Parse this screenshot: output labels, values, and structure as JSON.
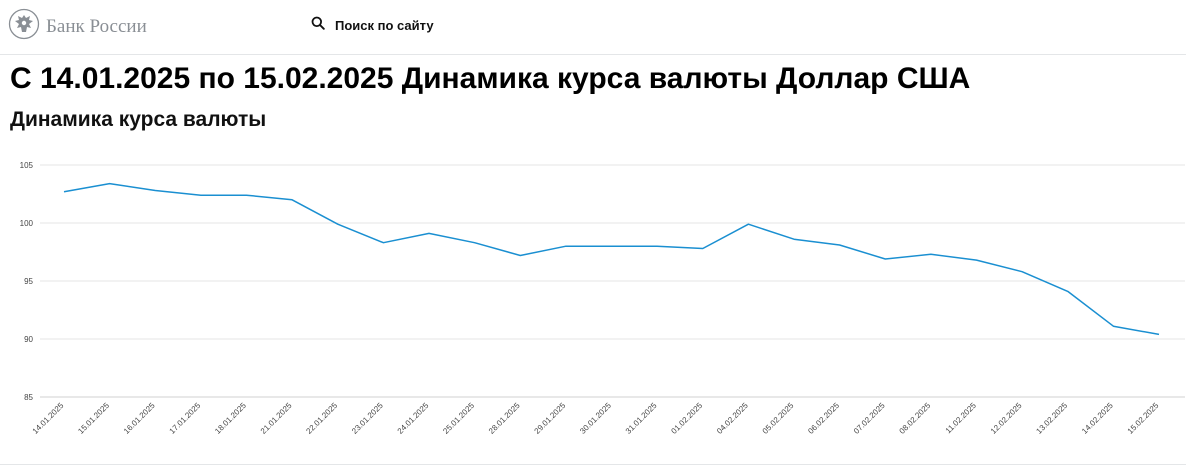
{
  "header": {
    "logo_text": "Банк России",
    "logo_icon": "eagle-emblem-icon",
    "search_icon": "search-icon",
    "search_label": "Поиск по сайту"
  },
  "page_title": "С 14.01.2025 по 15.02.2025 Динамика курса валюты Доллар США",
  "section_title": "Динамика курса валюты",
  "colors": {
    "line": "#1a8fd1",
    "grid": "#e6e6e6",
    "logo": "#8a8f95"
  },
  "chart_data": {
    "type": "line",
    "title": "",
    "xlabel": "",
    "ylabel": "",
    "categories": [
      "14.01.2025",
      "15.01.2025",
      "16.01.2025",
      "17.01.2025",
      "18.01.2025",
      "21.01.2025",
      "22.01.2025",
      "23.01.2025",
      "24.01.2025",
      "25.01.2025",
      "28.01.2025",
      "29.01.2025",
      "30.01.2025",
      "31.01.2025",
      "01.02.2025",
      "04.02.2025",
      "05.02.2025",
      "06.02.2025",
      "07.02.2025",
      "08.02.2025",
      "11.02.2025",
      "12.02.2025",
      "13.02.2025",
      "14.02.2025",
      "15.02.2025"
    ],
    "series": [
      {
        "values": [
          102.7,
          103.4,
          102.8,
          102.4,
          102.4,
          102.0,
          99.9,
          98.3,
          99.1,
          98.3,
          97.2,
          98.0,
          98.0,
          98.0,
          97.8,
          99.9,
          98.6,
          98.1,
          96.9,
          97.3,
          96.8,
          95.8,
          94.1,
          91.1,
          90.4
        ]
      }
    ],
    "yticks": [
      85,
      90,
      95,
      100,
      105
    ],
    "ylim": [
      85,
      105
    ],
    "grid": true,
    "legend": "none"
  }
}
